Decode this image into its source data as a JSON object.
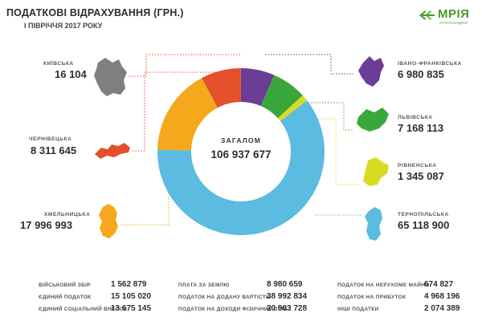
{
  "header": {
    "title": "ПОДАТКОВІ ВІДРАХУВАННЯ (ГРН.)",
    "subtitle": "I ПІВРІЧЧЯ 2017 РОКУ"
  },
  "logo": {
    "name": "МРІЯ",
    "sub": "АГРОХОЛДИНГ"
  },
  "colors": {
    "kyiv": "#7f7f7f",
    "chernivtsi": "#e3502a",
    "khmelnytskyi": "#f5a81c",
    "ivano_frankivsk": "#6a3d96",
    "lviv": "#3aa73a",
    "rivne": "#d8dc20",
    "ternopil": "#5bbbe0"
  },
  "chart_data": {
    "type": "pie",
    "total_label": "ЗАГАЛОМ",
    "total_value": "106 937 677",
    "slices": [
      {
        "key": "ivano_frankivsk",
        "label": "ІВАНО-ФРАНКІВСЬКА",
        "value": 6980835,
        "display": "6 980 835"
      },
      {
        "key": "lviv",
        "label": "ЛЬВІВСЬКА",
        "value": 7168113,
        "display": "7 168 113"
      },
      {
        "key": "rivne",
        "label": "РІВНЕНСЬКА",
        "value": 1345087,
        "display": "1 345 087"
      },
      {
        "key": "ternopil",
        "label": "ТЕРНОПІЛЬСЬКА",
        "value": 65118900,
        "display": "65 118 900"
      },
      {
        "key": "khmelnytskyi",
        "label": "ХМЕЛЬНИЦЬКА",
        "value": 17996993,
        "display": "17 996 993"
      },
      {
        "key": "chernivtsi",
        "label": "ЧЕРНІВЕЦЬКА",
        "value": 8311645,
        "display": "8 311 645"
      },
      {
        "key": "kyiv",
        "label": "КИЇВСЬКА",
        "value": 16104,
        "display": "16 104"
      }
    ]
  },
  "taxes": [
    {
      "label": "ВІЙСЬКОВИЙ ЗБІР",
      "value": "1 562 879"
    },
    {
      "label": "ЄДИНИЙ ПОДАТОК",
      "value": "15 105 020"
    },
    {
      "label": "ЄДИНИЙ СОЦІАЛЬНИЙ ВНЕСОК",
      "value": "13 675 145"
    },
    {
      "label": "ПЛАТА ЗА ЗЕМЛЮ",
      "value": "8 980 659"
    },
    {
      "label": "ПОДАТОК НА ДОДАНУ ВАРТІСТЬ",
      "value": "38 992 834"
    },
    {
      "label": "ПОДАТОК НА ДОХОДИ ФІЗИЧНИХ ОСІБ",
      "value": "20 903 728"
    },
    {
      "label": "ПОДАТОК НА НЕРУХОМЕ МАЙНО",
      "value": "674 827"
    },
    {
      "label": "ПОДАТОК НА ПРИБУТОК",
      "value": "4 968 196"
    },
    {
      "label": "ІНШІ ПОДАТКИ",
      "value": "2 074 389"
    }
  ]
}
